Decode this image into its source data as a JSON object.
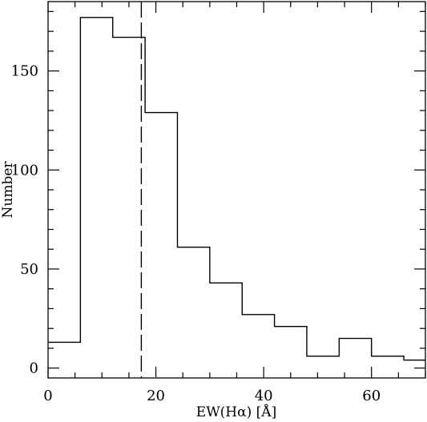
{
  "chart_data": {
    "type": "histogram",
    "xlabel": "EW(Hα) [Å]",
    "ylabel": "Number",
    "xlim": [
      0,
      70
    ],
    "ylim": [
      -5,
      185
    ],
    "x_ticks": [
      0,
      20,
      40,
      60
    ],
    "y_ticks": [
      0,
      50,
      100,
      150
    ],
    "bin_edges": [
      0,
      6,
      12,
      18,
      24,
      30,
      36,
      42,
      48,
      54,
      60,
      66,
      70
    ],
    "counts": [
      13,
      177,
      167,
      129,
      61,
      43,
      27,
      21,
      6,
      15,
      6,
      4
    ],
    "marker_line": {
      "x": 17.3,
      "style": "dashed"
    },
    "grid": false
  }
}
